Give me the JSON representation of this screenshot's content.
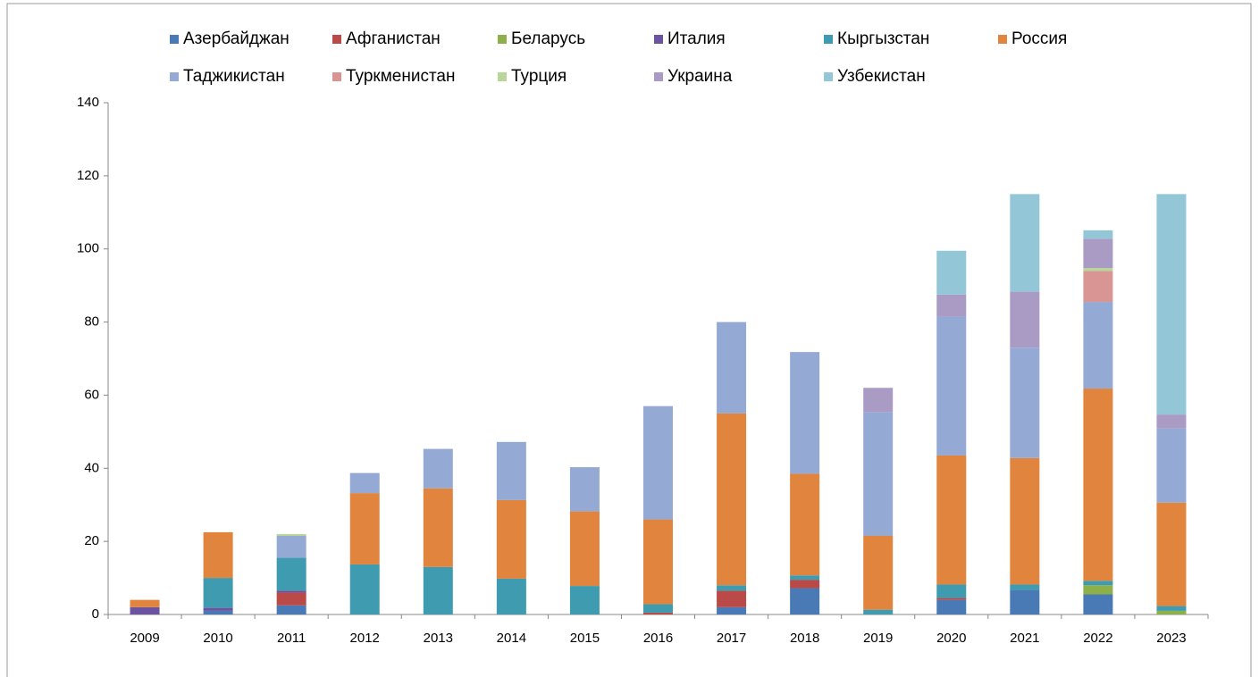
{
  "chart_data": {
    "type": "stacked_bar",
    "categories": [
      "2009",
      "2010",
      "2011",
      "2012",
      "2013",
      "2014",
      "2015",
      "2016",
      "2017",
      "2018",
      "2019",
      "2020",
      "2021",
      "2022",
      "2023"
    ],
    "series": [
      {
        "name": "Азербайджан",
        "color": "#4a7ab5",
        "values": [
          0,
          1,
          2.5,
          0,
          0,
          0,
          0,
          0,
          2,
          7.2,
          0,
          4,
          6.7,
          5.5,
          0
        ]
      },
      {
        "name": "Афганистан",
        "color": "#b94a48",
        "values": [
          0,
          0,
          3.5,
          0,
          0,
          0,
          0,
          0.5,
          4.5,
          2.3,
          0,
          0.5,
          0,
          0,
          0
        ]
      },
      {
        "name": "Беларусь",
        "color": "#8db04a",
        "values": [
          0,
          0,
          0,
          0,
          0,
          0,
          0,
          0,
          0,
          0,
          0,
          0,
          0,
          2.5,
          1
        ]
      },
      {
        "name": "Италия",
        "color": "#6b53a0",
        "values": [
          2,
          0.8,
          0.5,
          0,
          0,
          0,
          0,
          0,
          0,
          0,
          0,
          0,
          0,
          0,
          0
        ]
      },
      {
        "name": "Кыргызстан",
        "color": "#3e9bb0",
        "values": [
          0,
          8.2,
          9,
          13.7,
          13,
          9.8,
          7.8,
          2.3,
          1.5,
          1.2,
          1.3,
          3.7,
          1.5,
          1.2,
          1.3
        ]
      },
      {
        "name": "Россия",
        "color": "#e0843e",
        "values": [
          2,
          12.5,
          0,
          19.5,
          21.5,
          21.5,
          20.4,
          23.2,
          47,
          27.8,
          20.2,
          35.3,
          34.6,
          52.6,
          28.3
        ]
      },
      {
        "name": "Таджикистан",
        "color": "#94aad4",
        "values": [
          0,
          0,
          6,
          5.5,
          10.8,
          15.9,
          12.1,
          31,
          25,
          33.3,
          33.8,
          38,
          30.2,
          23.7,
          20.3
        ]
      },
      {
        "name": "Туркменистан",
        "color": "#d99593",
        "values": [
          0,
          0,
          0,
          0,
          0,
          0,
          0,
          0,
          0,
          0,
          0,
          0,
          0,
          8.5,
          0
        ]
      },
      {
        "name": "Турция",
        "color": "#b8d59a",
        "values": [
          0,
          0,
          0.5,
          0,
          0,
          0,
          0,
          0,
          0,
          0,
          0,
          0,
          0,
          0.8,
          0
        ]
      },
      {
        "name": "Украина",
        "color": "#a99bc4",
        "values": [
          0,
          0,
          0,
          0,
          0,
          0,
          0,
          0,
          0,
          0,
          6.7,
          6,
          15.3,
          8,
          3.8
        ]
      },
      {
        "name": "Узбекистан",
        "color": "#93c7d8",
        "values": [
          0,
          0,
          0,
          0,
          0,
          0,
          0,
          0,
          0,
          0,
          0,
          12,
          26.7,
          2.3,
          60.3
        ]
      }
    ],
    "ylim": [
      0,
      140
    ],
    "yticks": [
      0,
      20,
      40,
      60,
      80,
      100,
      120,
      140
    ],
    "legend": "top"
  }
}
